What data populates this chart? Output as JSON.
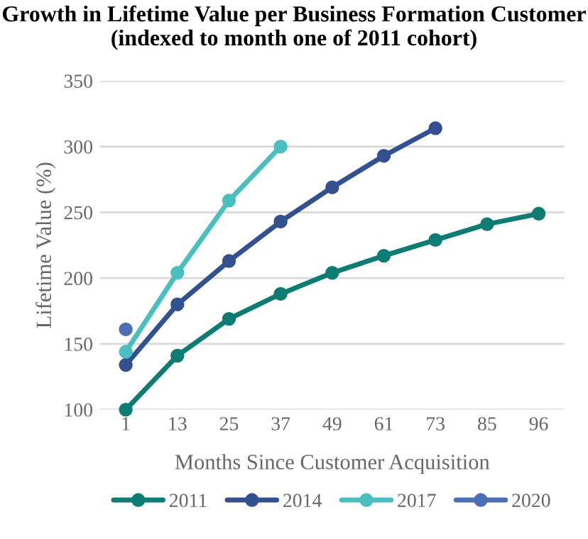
{
  "chart_data": {
    "type": "line",
    "title": "Growth in Lifetime Value per Business Formation Customer\n(indexed to month one of 2011 cohort)",
    "xlabel": "Months Since Customer Acquisition",
    "ylabel": "Lifetime Value (%)",
    "categories": [
      "1",
      "13",
      "25",
      "37",
      "49",
      "61",
      "73",
      "85",
      "96"
    ],
    "series": [
      {
        "name": "2011",
        "color": "#0e7c72",
        "values": [
          100,
          141,
          169,
          188,
          204,
          217,
          229,
          241,
          249
        ]
      },
      {
        "name": "2014",
        "color": "#33508f",
        "values": [
          134,
          180,
          213,
          243,
          269,
          293,
          314,
          null,
          null
        ]
      },
      {
        "name": "2017",
        "color": "#4bbfbf",
        "values": [
          144,
          204,
          259,
          300,
          null,
          null,
          null,
          null,
          null
        ]
      },
      {
        "name": "2020",
        "color": "#4a6fb5",
        "values": [
          161,
          null,
          null,
          null,
          null,
          null,
          null,
          null,
          null
        ]
      }
    ],
    "ylim": [
      100,
      350
    ],
    "yticks": [
      100,
      150,
      200,
      250,
      300,
      350
    ],
    "grid": "y",
    "legend": "bottom",
    "marker": "circle",
    "line_style": "solid"
  }
}
